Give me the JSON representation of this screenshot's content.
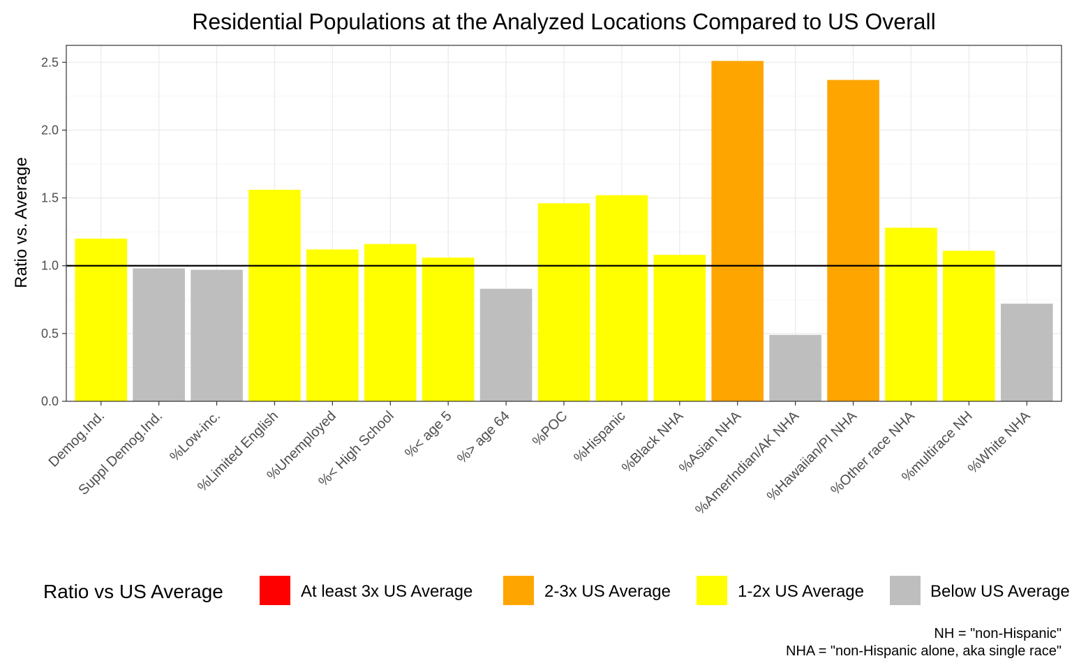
{
  "chart_data": {
    "type": "bar",
    "title": "Residential Populations at the Analyzed Locations Compared to US Overall",
    "xlabel": "",
    "ylabel": "Ratio vs. Average",
    "ylim": [
      0,
      2.5
    ],
    "yticks": [
      "0.0",
      "0.5",
      "1.0",
      "1.5",
      "2.0",
      "2.5"
    ],
    "reference_line": 1.0,
    "grid": true,
    "categories": [
      "Demog.Ind.",
      "Suppl Demog.Ind.",
      "%Low-inc.",
      "%Limited English",
      "%Unemployed",
      "%< High School",
      "%< age 5",
      "%> age 64",
      "%POC",
      "%Hispanic",
      "%Black NHA",
      "%Asian NHA",
      "%AmerIndian/AK NHA",
      "%Hawaiian/PI NHA",
      "%Other race NHA",
      "%multirace NH",
      "%White NHA"
    ],
    "values": [
      1.2,
      0.98,
      0.97,
      1.56,
      1.12,
      1.16,
      1.06,
      0.83,
      1.46,
      1.52,
      1.08,
      2.51,
      0.49,
      2.37,
      1.28,
      1.11,
      0.72
    ],
    "bar_groups": [
      "1-2x US Average",
      "Below US Average",
      "Below US Average",
      "1-2x US Average",
      "1-2x US Average",
      "1-2x US Average",
      "1-2x US Average",
      "Below US Average",
      "1-2x US Average",
      "1-2x US Average",
      "1-2x US Average",
      "2-3x US Average",
      "Below US Average",
      "2-3x US Average",
      "1-2x US Average",
      "1-2x US Average",
      "Below US Average"
    ],
    "legend": {
      "title": "Ratio vs US Average",
      "placement": "bottom",
      "entries": [
        {
          "label": "At least 3x US Average",
          "color": "#FF0000"
        },
        {
          "label": "2-3x US Average",
          "color": "#FFA500"
        },
        {
          "label": "1-2x US Average",
          "color": "#FFFF00"
        },
        {
          "label": "Below US Average",
          "color": "#BEBEBE"
        }
      ]
    },
    "notes": [
      "NH = \"non-Hispanic\"",
      "NHA = \"non-Hispanic alone, aka single race\""
    ]
  }
}
